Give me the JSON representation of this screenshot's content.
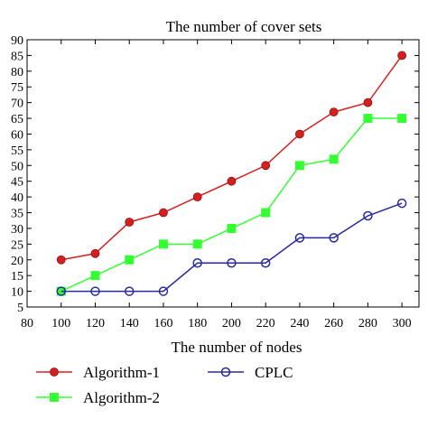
{
  "chart_data": {
    "type": "line",
    "title": "The number of cover sets",
    "xlabel": "The number of nodes",
    "ylabel": "",
    "xlim": [
      80,
      310
    ],
    "ylim": [
      5,
      90
    ],
    "xticks": [
      80,
      100,
      120,
      140,
      160,
      180,
      200,
      220,
      240,
      260,
      280,
      300
    ],
    "yticks": [
      5,
      10,
      15,
      20,
      25,
      30,
      35,
      40,
      45,
      50,
      55,
      60,
      65,
      70,
      75,
      80,
      85,
      90
    ],
    "grid": false,
    "legend_position": "bottom",
    "x": [
      100,
      120,
      140,
      160,
      180,
      200,
      220,
      240,
      260,
      280,
      300
    ],
    "series": [
      {
        "name": "Algorithm-1",
        "color": "#d62020",
        "marker": "circle-filled",
        "values": [
          20,
          22,
          32,
          35,
          40,
          45,
          50,
          60,
          67,
          70,
          85
        ]
      },
      {
        "name": "Algorithm-2",
        "color": "#33ff33",
        "marker": "square-filled",
        "values": [
          10,
          15,
          20,
          25,
          25,
          30,
          35,
          50,
          52,
          65,
          65
        ]
      },
      {
        "name": "CPLC",
        "color": "#2a2a9a",
        "marker": "circle-open",
        "values": [
          10,
          10,
          10,
          10,
          19,
          19,
          19,
          27,
          27,
          34,
          38
        ]
      }
    ]
  }
}
